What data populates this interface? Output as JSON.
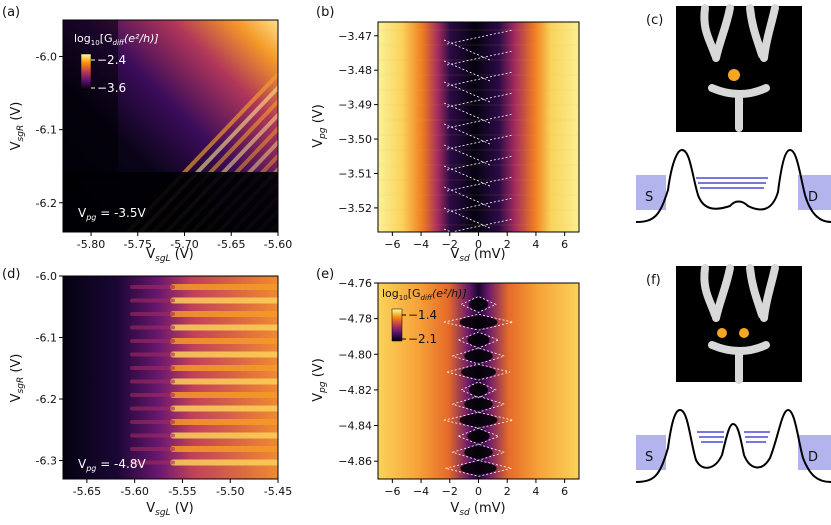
{
  "panels": {
    "a": {
      "label": "(a)",
      "xlabel": "V$sgL (V)",
      "xlabel_main": "V",
      "xlabel_sub": "sgL",
      "xlabel_unit": " (V)",
      "ylabel_main": "V",
      "ylabel_sub": "sgR",
      "ylabel_unit": " (V)",
      "xticks": [
        "-5.80",
        "-5.75",
        "-5.70",
        "-5.65",
        "-5.60"
      ],
      "yticks": [
        "-6.0",
        "-6.1",
        "-6.2"
      ],
      "colorbar_title_pre": "log",
      "colorbar_title_sub": "10",
      "colorbar_title_post": "[G",
      "colorbar_title_diff": "diff",
      "colorbar_title_units": "(e²/h)]",
      "colorbar_max": "−2.4",
      "colorbar_min": "−3.6",
      "annotation_main": "V",
      "annotation_sub": "pg",
      "annotation_value": " = -3.5V"
    },
    "b": {
      "label": "(b)",
      "xlabel_main": "V",
      "xlabel_sub": "sd",
      "xlabel_unit": " (mV)",
      "ylabel_main": "V",
      "ylabel_sub": "pg",
      "ylabel_unit": " (V)",
      "xticks": [
        "−6",
        "−4",
        "−2",
        "0",
        "2",
        "4",
        "6"
      ],
      "yticks": [
        "−3.47",
        "−3.48",
        "−3.49",
        "−3.50",
        "−3.51",
        "−3.52"
      ]
    },
    "c": {
      "label": "(c)",
      "source_label": "S",
      "drain_label": "D"
    },
    "d": {
      "label": "(d)",
      "xlabel_main": "V",
      "xlabel_sub": "sgL",
      "xlabel_unit": " (V)",
      "ylabel_main": "V",
      "ylabel_sub": "sgR",
      "ylabel_unit": " (V)",
      "xticks": [
        "-5.65",
        "-5.60",
        "-5.55",
        "-5.50",
        "-5.45"
      ],
      "yticks": [
        "-6.0",
        "-6.1",
        "-6.2",
        "-6.3"
      ],
      "annotation_main": "V",
      "annotation_sub": "pg",
      "annotation_value": " = -4.8V"
    },
    "e": {
      "label": "(e)",
      "xlabel_main": "V",
      "xlabel_sub": "sd",
      "xlabel_unit": " (mV)",
      "ylabel_main": "V",
      "ylabel_sub": "pg",
      "ylabel_unit": " (V)",
      "xticks": [
        "−6",
        "−4",
        "−2",
        "0",
        "2",
        "4",
        "6"
      ],
      "yticks": [
        "−4.76",
        "−4.78",
        "−4.80",
        "−4.82",
        "−4.84",
        "−4.86"
      ],
      "colorbar_title_pre": "log",
      "colorbar_title_sub": "10",
      "colorbar_title_post": "[G",
      "colorbar_title_diff": "diff",
      "colorbar_title_units": "(e²/h)]",
      "colorbar_max": "−1.4",
      "colorbar_min": "−2.1"
    },
    "f": {
      "label": "(f)",
      "source_label": "S",
      "drain_label": "D"
    }
  },
  "colors": {
    "inferno_dark": "#000004",
    "inferno_purple": "#56106e",
    "inferno_red": "#bb3754",
    "inferno_orange": "#f98e09",
    "inferno_yellow": "#fcffa4",
    "dot": "#f5a623",
    "lead": "#b3b3ee",
    "level": "#4a4ad0",
    "gate": "#d8d8d8"
  },
  "chart_data": [
    {
      "panel": "a",
      "type": "heatmap",
      "x_range": [
        -5.83,
        -5.6
      ],
      "y_range": [
        -6.24,
        -5.95
      ],
      "xlabel": "VsgL (V)",
      "ylabel": "VsgR (V)",
      "colorbar_range": [
        -3.6,
        -2.4
      ],
      "note": "Diagonal resonance stripes brightest at top-right; dark region at low VsgL and VsgR < -6.17 V; Vpg = -3.5 V"
    },
    {
      "panel": "b",
      "type": "heatmap",
      "x_range": [
        -7,
        7
      ],
      "y_range": [
        -3.527,
        -3.466
      ],
      "xlabel": "Vsd (mV)",
      "ylabel": "Vpg (V)",
      "note": "Dark suppression band |Vsd| < ~2 mV with tilted dashed diamond lines"
    },
    {
      "panel": "d",
      "type": "heatmap",
      "x_range": [
        -5.675,
        -5.45
      ],
      "y_range": [
        -6.33,
        -6.0
      ],
      "xlabel": "VsgL (V)",
      "ylabel": "VsgR (V)",
      "note": "Horizontal resonance bands for VsgL > -5.60 V; Vpg = -4.8 V"
    },
    {
      "panel": "e",
      "type": "heatmap",
      "x_range": [
        -7,
        7
      ],
      "y_range": [
        -4.87,
        -4.76
      ],
      "xlabel": "Vsd (mV)",
      "ylabel": "Vpg (V)",
      "colorbar_range": [
        -2.1,
        -1.4
      ],
      "note": "Coulomb diamonds centered at Vsd = 0 with dashed white outlines"
    }
  ]
}
